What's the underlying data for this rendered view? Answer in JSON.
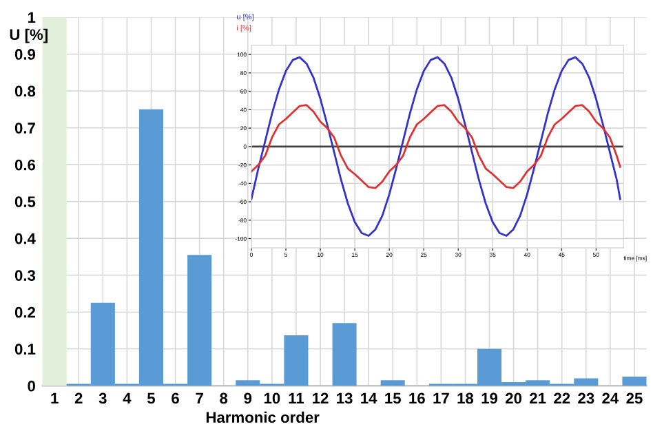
{
  "chart_data": [
    {
      "type": "bar",
      "xlabel": "Harmonic order",
      "ylabel": "U [%]",
      "categories": [
        "1",
        "2",
        "3",
        "4",
        "5",
        "6",
        "7",
        "8",
        "9",
        "10",
        "11",
        "12",
        "13",
        "14",
        "15",
        "16",
        "17",
        "18",
        "19",
        "20",
        "21",
        "22",
        "23",
        "24",
        "25"
      ],
      "values": [
        1.0,
        0.005,
        0.225,
        0.005,
        0.75,
        0.005,
        0.355,
        0,
        0.015,
        0.005,
        0.137,
        0,
        0.17,
        0,
        0.015,
        0,
        0.005,
        0.005,
        0.1,
        0.01,
        0.015,
        0.005,
        0.02,
        0,
        0.025
      ],
      "colors": [
        "#e2efda",
        "#5b9bd5",
        "#5b9bd5",
        "#5b9bd5",
        "#5b9bd5",
        "#5b9bd5",
        "#5b9bd5",
        "#5b9bd5",
        "#5b9bd5",
        "#5b9bd5",
        "#5b9bd5",
        "#5b9bd5",
        "#5b9bd5",
        "#5b9bd5",
        "#5b9bd5",
        "#5b9bd5",
        "#5b9bd5",
        "#5b9bd5",
        "#5b9bd5",
        "#5b9bd5",
        "#5b9bd5",
        "#5b9bd5",
        "#5b9bd5",
        "#5b9bd5",
        "#5b9bd5"
      ],
      "ylim": [
        0,
        1
      ],
      "yticks": [
        0,
        0.1,
        0.2,
        0.3,
        0.4,
        0.5,
        0.6,
        0.7,
        0.8,
        0.9,
        1
      ],
      "grid": true
    },
    {
      "type": "line",
      "xlabel": "time [ms]",
      "legend": "top left",
      "grid": true,
      "marker": "none",
      "line_style": "solid",
      "xlim": [
        0,
        54
      ],
      "xticks": [
        0,
        5,
        10,
        15,
        20,
        25,
        30,
        35,
        40,
        45,
        50
      ],
      "ylim": [
        -110,
        110
      ],
      "yticks": [
        -100,
        -80,
        -60,
        -40,
        -20,
        0,
        20,
        40,
        60,
        80,
        100
      ],
      "ref_lines": [
        {
          "axis": "y",
          "value": 0,
          "color": "#404040"
        }
      ],
      "series": [
        {
          "name": "u [%]",
          "color": "#3333cc",
          "x": [
            0,
            1,
            2,
            3,
            4,
            5,
            6,
            7,
            8,
            9,
            10,
            11,
            12,
            13,
            14,
            15,
            16,
            17,
            18,
            19,
            20,
            21,
            22,
            23,
            24,
            25,
            26,
            27,
            28,
            29,
            30,
            31,
            32,
            33,
            34,
            35,
            36,
            37,
            38,
            39,
            40,
            41,
            42,
            43,
            44,
            45,
            46,
            47,
            48,
            49,
            50,
            51,
            52,
            53,
            53.5
          ],
          "values": [
            -57,
            -24,
            6,
            36,
            62,
            82,
            94,
            97,
            90,
            75,
            52,
            24,
            -6,
            -36,
            -62,
            -82,
            -94,
            -97,
            -90,
            -75,
            -52,
            -24,
            6,
            36,
            62,
            82,
            94,
            97,
            90,
            75,
            52,
            24,
            -6,
            -36,
            -62,
            -82,
            -94,
            -97,
            -90,
            -75,
            -52,
            -24,
            6,
            36,
            62,
            82,
            94,
            97,
            90,
            75,
            52,
            24,
            -6,
            -36,
            -57
          ]
        },
        {
          "name": "i [%]",
          "color": "#e03030",
          "x": [
            0,
            1,
            2,
            3,
            4,
            5,
            6,
            7,
            8,
            9,
            10,
            11,
            12,
            13,
            14,
            15,
            16,
            17,
            18,
            19,
            20,
            21,
            22,
            23,
            24,
            25,
            26,
            27,
            28,
            29,
            30,
            31,
            32,
            33,
            34,
            35,
            36,
            37,
            38,
            39,
            40,
            41,
            42,
            43,
            44,
            45,
            46,
            47,
            48,
            49,
            50,
            51,
            52,
            53,
            53.5
          ],
          "values": [
            -27,
            -20,
            -10,
            10,
            24,
            30,
            37,
            44,
            45,
            38,
            27,
            20,
            10,
            -10,
            -24,
            -30,
            -37,
            -44,
            -45,
            -38,
            -27,
            -20,
            -10,
            10,
            24,
            30,
            37,
            44,
            45,
            38,
            27,
            20,
            10,
            -10,
            -24,
            -30,
            -37,
            -44,
            -45,
            -38,
            -27,
            -20,
            -10,
            10,
            24,
            30,
            37,
            44,
            45,
            38,
            27,
            20,
            10,
            -10,
            -22
          ]
        }
      ]
    }
  ]
}
